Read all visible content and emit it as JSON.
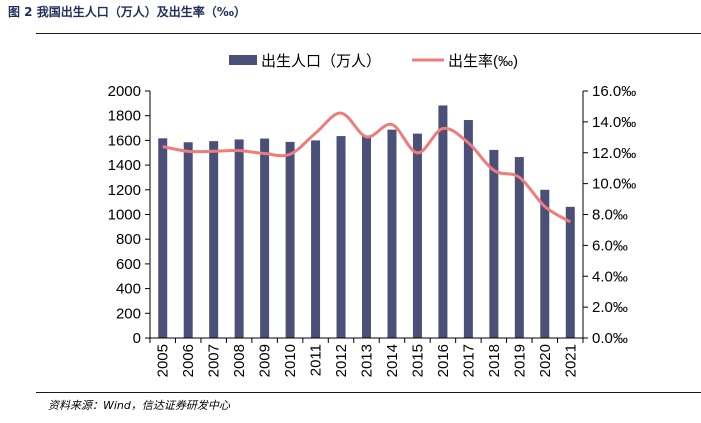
{
  "figure": {
    "title": "图 2  我国出生人口（万人）及出生率（‰）",
    "source": "资料来源：Wind，信达证券研发中心"
  },
  "colors": {
    "bar": "#4a5078",
    "line": "#f07b7b",
    "axis": "#000000",
    "rule": "#1a1a1a"
  },
  "chart_data": {
    "type": "bar",
    "categories": [
      "2005",
      "2006",
      "2007",
      "2008",
      "2009",
      "2010",
      "2011",
      "2012",
      "2013",
      "2014",
      "2015",
      "2016",
      "2017",
      "2018",
      "2019",
      "2020",
      "2021"
    ],
    "series": [
      {
        "name": "出生人口（万人）",
        "type": "bar",
        "axis": "left",
        "values": [
          1617,
          1585,
          1594,
          1608,
          1615,
          1588,
          1600,
          1635,
          1640,
          1687,
          1655,
          1883,
          1765,
          1523,
          1465,
          1200,
          1062
        ]
      },
      {
        "name": "出生率(‰)",
        "type": "line",
        "axis": "right",
        "values": [
          12.4,
          12.09,
          12.1,
          12.14,
          11.95,
          11.9,
          13.27,
          14.57,
          13.03,
          13.83,
          11.99,
          13.57,
          12.64,
          10.86,
          10.41,
          8.52,
          7.52
        ]
      }
    ],
    "y_left": {
      "lim": [
        0,
        2000
      ],
      "ticks": [
        "0",
        "200",
        "400",
        "600",
        "800",
        "1000",
        "1200",
        "1400",
        "1600",
        "1800",
        "2000"
      ]
    },
    "y_right": {
      "lim": [
        0,
        16
      ],
      "ticks": [
        "0.0‰",
        "2.0‰",
        "4.0‰",
        "6.0‰",
        "8.0‰",
        "10.0‰",
        "12.0‰",
        "14.0‰",
        "16.0‰"
      ]
    },
    "legend": {
      "placement": "top-center"
    },
    "grid": false
  }
}
